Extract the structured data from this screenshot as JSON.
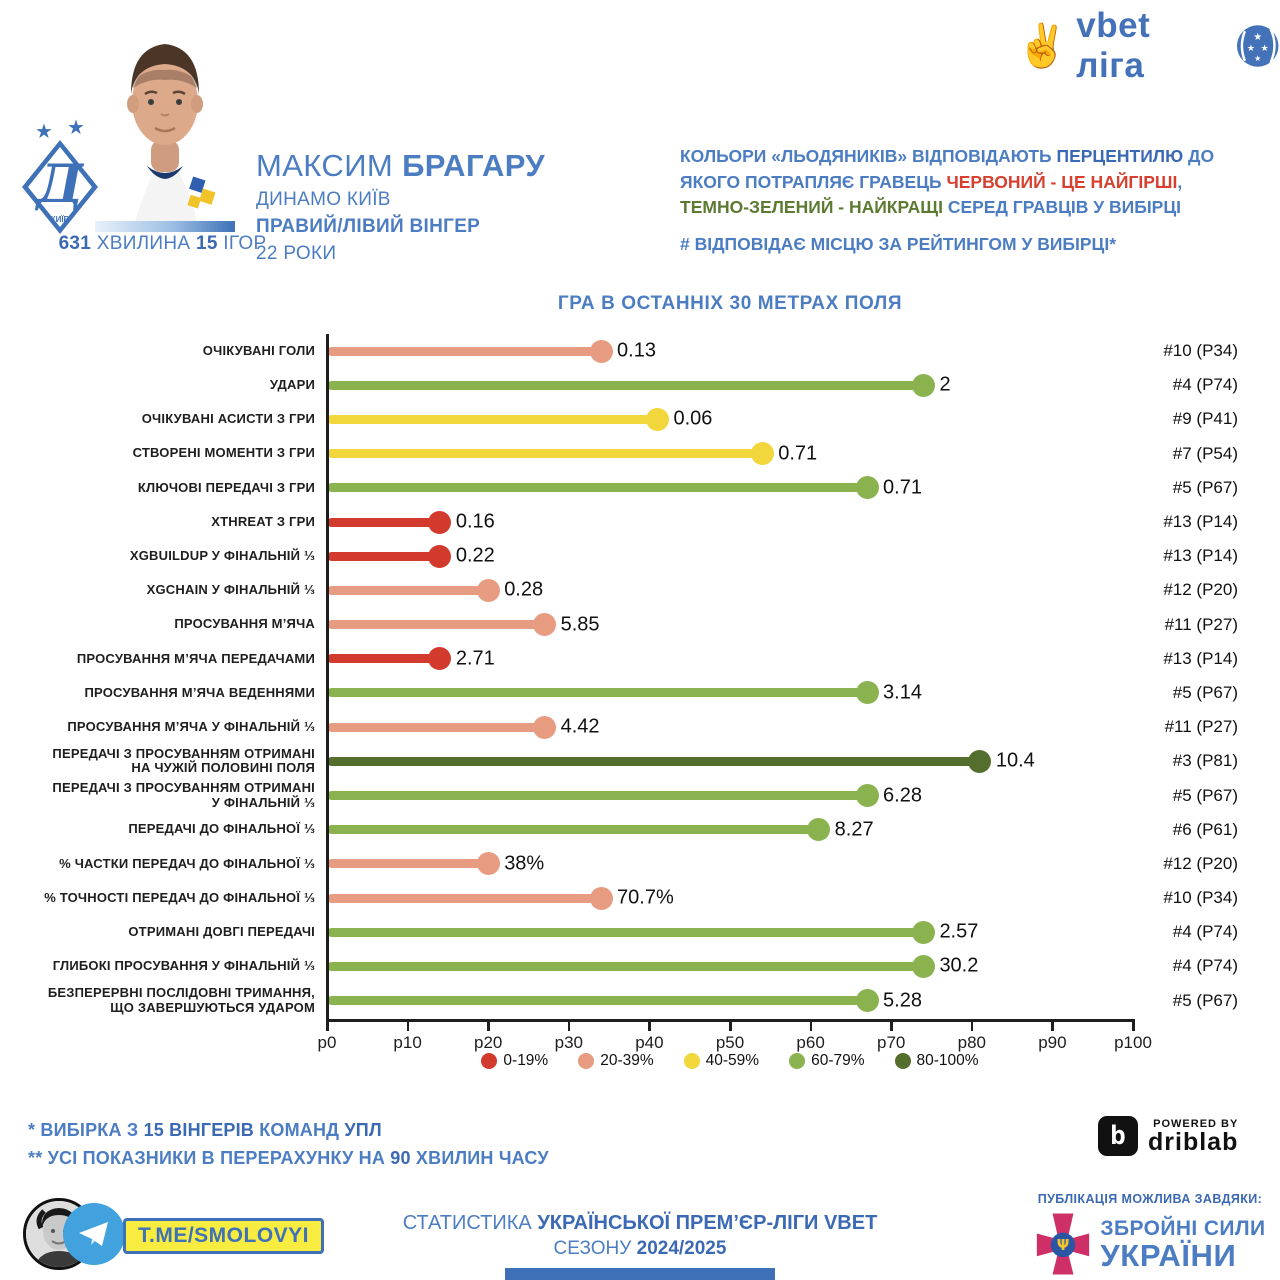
{
  "header": {
    "club_badge": {
      "club": "Динамо Київ",
      "letter": "Д",
      "city": "КИЇВ",
      "stars": "★ ★"
    },
    "minutes_line": {
      "minutes": "631",
      "minutes_label": " ХВИЛИНА ",
      "games": "15",
      "games_label": " ІГОР"
    },
    "player": {
      "first_name": "МАКСИМ ",
      "last_name": "БРАГАРУ",
      "club": "ДИНАМО КИЇВ",
      "position": "ПРАВИЙ/ЛІВИЙ ВІНГЕР",
      "age": "22 РОКИ"
    },
    "league_logo": {
      "hand": "✌",
      "text": "vbet ліга"
    },
    "color_note": {
      "p1": "КОЛЬОРИ «ЛЬОДЯНИКІВ» ВІДПОВІДАЮТЬ ",
      "p2": "ПЕРЦЕНТИЛЮ",
      "p3": " ДО ЯКОГО ПОТРАПЛЯЄ ГРАВЕЦЬ ",
      "p4": "ЧЕРВОНИЙ - ЦЕ НАЙГІРШІ",
      "p5": ", ",
      "p6": "ТЕМНО-ЗЕЛЕНИЙ - НАЙКРАЩІ",
      "p7": " СЕРЕД ГРАВЦІВ У ВИБІРЦІ"
    },
    "rank_note": "# ВІДПОВІДАЄ МІСЦЮ ЗА РЕЙТИНГОМ У ВИБІРЦІ*"
  },
  "chart_data": {
    "type": "bar",
    "style": "horizontal-lollipop",
    "title": "ГРА В ОСТАННІХ 30 МЕТРАХ ПОЛЯ",
    "xlabel": "",
    "ylabel": "",
    "axis": {
      "min": 0,
      "max": 100,
      "ticks": [
        "p0",
        "p10",
        "p20",
        "p30",
        "p40",
        "p50",
        "p60",
        "p70",
        "p80",
        "p90",
        "p100"
      ]
    },
    "legend_position": "bottom",
    "legend": [
      {
        "label": "0-19%",
        "color": "#d23a2d"
      },
      {
        "label": "20-39%",
        "color": "#e79b80"
      },
      {
        "label": "40-59%",
        "color": "#f1d73c"
      },
      {
        "label": "60-79%",
        "color": "#8ab350"
      },
      {
        "label": "80-100%",
        "color": "#546e2d"
      }
    ],
    "rows": [
      {
        "label_lines": [
          "ОЧІКУВАНІ ГОЛИ"
        ],
        "value": "0.13",
        "percentile": 34,
        "rank": "#10 (P34)",
        "color": "#e79b80"
      },
      {
        "label_lines": [
          "УДАРИ"
        ],
        "value": "2",
        "percentile": 74,
        "rank": "#4 (P74)",
        "color": "#8ab350"
      },
      {
        "label_lines": [
          "ОЧІКУВАНІ АСИСТИ З ГРИ"
        ],
        "value": "0.06",
        "percentile": 41,
        "rank": "#9 (P41)",
        "color": "#f1d73c"
      },
      {
        "label_lines": [
          "СТВОРЕНІ МОМЕНТИ З ГРИ"
        ],
        "value": "0.71",
        "percentile": 54,
        "rank": "#7 (P54)",
        "color": "#f1d73c"
      },
      {
        "label_lines": [
          "КЛЮЧОВІ ПЕРЕДАЧІ З ГРИ"
        ],
        "value": "0.71",
        "percentile": 67,
        "rank": "#5 (P67)",
        "color": "#8ab350"
      },
      {
        "label_lines": [
          "XTHREAT З ГРИ"
        ],
        "value": "0.16",
        "percentile": 14,
        "rank": "#13 (P14)",
        "color": "#d23a2d"
      },
      {
        "label_lines": [
          "XGBUILDUP У ФІНАЛЬНІЙ ⅓"
        ],
        "value": "0.22",
        "percentile": 14,
        "rank": "#13 (P14)",
        "color": "#d23a2d"
      },
      {
        "label_lines": [
          "XGCHAIN У ФІНАЛЬНІЙ ⅓"
        ],
        "value": "0.28",
        "percentile": 20,
        "rank": "#12 (P20)",
        "color": "#e79b80"
      },
      {
        "label_lines": [
          "ПРОСУВАННЯ М’ЯЧА"
        ],
        "value": "5.85",
        "percentile": 27,
        "rank": "#11 (P27)",
        "color": "#e79b80"
      },
      {
        "label_lines": [
          "ПРОСУВАННЯ М’ЯЧА ПЕРЕДАЧАМИ"
        ],
        "value": "2.71",
        "percentile": 14,
        "rank": "#13 (P14)",
        "color": "#d23a2d"
      },
      {
        "label_lines": [
          "ПРОСУВАННЯ М’ЯЧА ВЕДЕННЯМИ"
        ],
        "value": "3.14",
        "percentile": 67,
        "rank": "#5 (P67)",
        "color": "#8ab350"
      },
      {
        "label_lines": [
          "ПРОСУВАННЯ М’ЯЧА У ФІНАЛЬНІЙ ⅓"
        ],
        "value": "4.42",
        "percentile": 27,
        "rank": "#11 (P27)",
        "color": "#e79b80"
      },
      {
        "label_lines": [
          "ПЕРЕДАЧІ З ПРОСУВАННЯМ ОТРИМАНІ",
          "НА ЧУЖІЙ ПОЛОВИНІ ПОЛЯ"
        ],
        "value": "10.4",
        "percentile": 81,
        "rank": "#3 (P81)",
        "color": "#546e2d"
      },
      {
        "label_lines": [
          "ПЕРЕДАЧІ З ПРОСУВАННЯМ ОТРИМАНІ",
          "У ФІНАЛЬНІЙ ⅓"
        ],
        "value": "6.28",
        "percentile": 67,
        "rank": "#5 (P67)",
        "color": "#8ab350"
      },
      {
        "label_lines": [
          "ПЕРЕДАЧІ ДО ФІНАЛЬНОЇ ⅓"
        ],
        "value": "8.27",
        "percentile": 61,
        "rank": "#6 (P61)",
        "color": "#8ab350"
      },
      {
        "label_lines": [
          "% ЧАСТКИ ПЕРЕДАЧ ДО ФІНАЛЬНОЇ ⅓"
        ],
        "value": "38%",
        "percentile": 20,
        "rank": "#12 (P20)",
        "color": "#e79b80"
      },
      {
        "label_lines": [
          "% ТОЧНОСТІ ПЕРЕДАЧ ДО ФІНАЛЬНОЇ ⅓"
        ],
        "value": "70.7%",
        "percentile": 34,
        "rank": "#10 (P34)",
        "color": "#e79b80"
      },
      {
        "label_lines": [
          "ОТРИМАНІ ДОВГІ ПЕРЕДАЧІ"
        ],
        "value": "2.57",
        "percentile": 74,
        "rank": "#4 (P74)",
        "color": "#8ab350"
      },
      {
        "label_lines": [
          "ГЛИБОКІ ПРОСУВАННЯ У ФІНАЛЬНІЙ ⅓"
        ],
        "value": "30.2",
        "percentile": 74,
        "rank": "#4 (P74)",
        "color": "#8ab350"
      },
      {
        "label_lines": [
          "БЕЗПЕРЕРВНІ ПОСЛІДОВНІ ТРИМАННЯ,",
          "ЩО ЗАВЕРШУЮТЬСЯ УДАРОМ"
        ],
        "value": "5.28",
        "percentile": 67,
        "rank": "#5 (P67)",
        "color": "#8ab350"
      }
    ]
  },
  "footnotes": {
    "l1p1": "* ВИБІРКА З ",
    "l1p2": "15 ВІНГЕРІВ",
    "l1p3": " КОМАНД ",
    "l1p4": "УПЛ",
    "l2p1": "** УСІ ПОКАЗНИКИ В ПЕРЕРАХУНКУ НА ",
    "l2p2": "90",
    "l2p3": " ХВИЛИН ЧАСУ"
  },
  "powered_by": {
    "pre": "POWERED BY",
    "brand": "driblab",
    "icon_letter": "b"
  },
  "footer": {
    "telegram_badge": "T.ME/SMOLOVYI",
    "stats_line": {
      "p1": "СТАТИСТИКА ",
      "p2": "УКРАЇНСЬКОЇ ПРЕМ’ЄР-ЛІГИ VBET",
      "p3": "СЕЗОНУ ",
      "p4": "2024/2025"
    },
    "credit": {
      "pre": "ПУБЛІКАЦІЯ МОЖЛИВА ЗАВДЯКИ:",
      "line1": "ЗБРОЙНІ СИЛИ",
      "line2": "УКРАЇНИ"
    }
  }
}
